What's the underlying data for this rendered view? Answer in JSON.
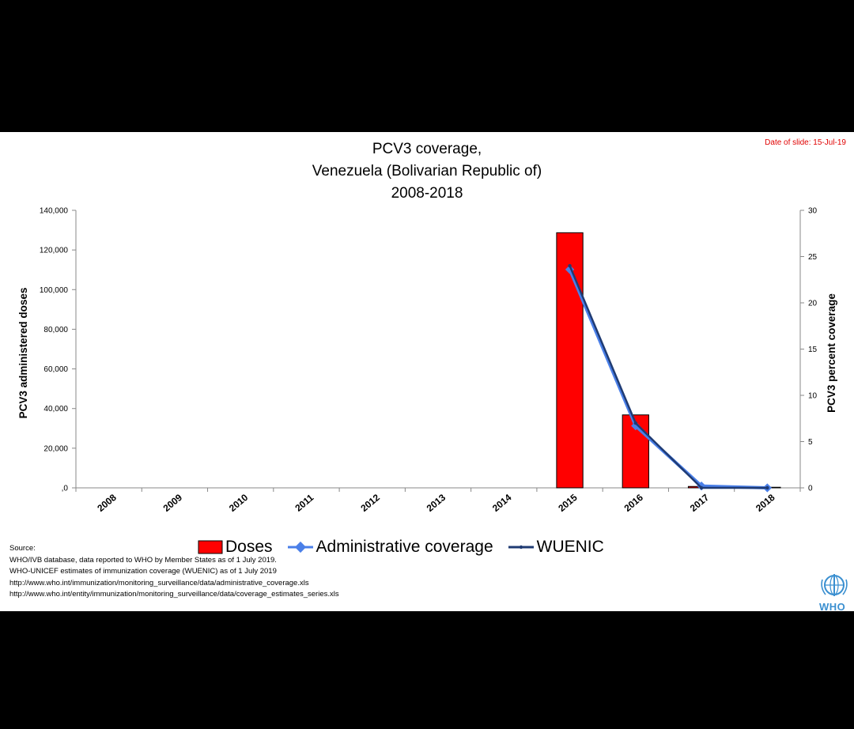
{
  "slide": {
    "date_of_slide": "Date of slide: 15-Jul-19",
    "title_lines": [
      "PCV3 coverage,",
      "Venezuela (Bolivarian  Republic of)",
      "2008-2018"
    ],
    "source_lines": [
      "Source:",
      "WHO/IVB database, data reported to WHO by Member States as of 1 July 2019.",
      "WHO-UNICEF estimates of immunization coverage (WUENIC) as of 1 July 2019",
      "http://www.who.int/immunization/monitoring_surveillance/data/administrative_coverage.xls",
      "http://www.who.int/entity/immunization/monitoring_surveillance/data/coverage_estimates_series.xls"
    ],
    "logo_text": "WHO"
  },
  "colors": {
    "doses": "#ff0000",
    "admin": "#4a7fe8",
    "wuenic": "#1f3b73",
    "date_note": "#e00000",
    "who": "#3a8fd0"
  },
  "chart_data": {
    "type": "bar",
    "categories": [
      "2008",
      "2009",
      "2010",
      "2011",
      "2012",
      "2013",
      "2014",
      "2015",
      "2016",
      "2017",
      "2018"
    ],
    "ylabel_left": "PCV3 administered doses",
    "ylabel_right": "PCV3 percent coverage",
    "ylim_left": [
      0,
      140000
    ],
    "ylim_right": [
      0,
      30
    ],
    "left_ticks": [
      "140,000",
      "120,000",
      "100,000",
      "80,000",
      "60,000",
      "40,000",
      "20,000",
      ",0"
    ],
    "right_ticks": [
      "30",
      "25",
      "20",
      "15",
      "10",
      "5",
      "0"
    ],
    "grid": false,
    "legend_position": "bottom",
    "series": [
      {
        "name": "Doses",
        "axis": "left",
        "kind": "bar",
        "values": [
          null,
          null,
          null,
          null,
          null,
          null,
          null,
          128700,
          36800,
          700,
          300
        ]
      },
      {
        "name": "Administrative coverage",
        "axis": "right",
        "kind": "line",
        "values": [
          null,
          null,
          null,
          null,
          null,
          null,
          null,
          23.6,
          6.7,
          0.2,
          0.0
        ]
      },
      {
        "name": "WUENIC",
        "axis": "right",
        "kind": "line",
        "values": [
          null,
          null,
          null,
          null,
          null,
          null,
          null,
          24,
          7,
          0,
          0
        ]
      }
    ]
  }
}
